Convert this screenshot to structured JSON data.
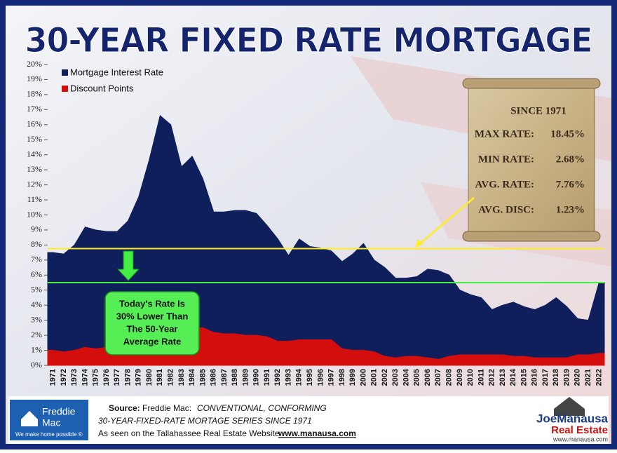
{
  "chart_data": {
    "type": "area",
    "title": "30-YEAR FIXED RATE MORTGAGE",
    "categories": [
      "1971",
      "1972",
      "1973",
      "1974",
      "1975",
      "1976",
      "1977",
      "1978",
      "1979",
      "1980",
      "1981",
      "1982",
      "1983",
      "1984",
      "1985",
      "1986",
      "1987",
      "1988",
      "1989",
      "1990",
      "1991",
      "1992",
      "1993",
      "1994",
      "1995",
      "1996",
      "1997",
      "1998",
      "1999",
      "2000",
      "2001",
      "2002",
      "2003",
      "2004",
      "2005",
      "2006",
      "2007",
      "2008",
      "2009",
      "2010",
      "2011",
      "2012",
      "2013",
      "2014",
      "2015",
      "2016",
      "2017",
      "2018",
      "2019",
      "2020",
      "2021",
      "2022"
    ],
    "series": [
      {
        "name": "Mortgage Interest Rate",
        "color": "#0f1f5c",
        "values": [
          7.5,
          7.4,
          8.0,
          9.2,
          9.0,
          8.9,
          8.9,
          9.6,
          11.2,
          13.7,
          16.6,
          16.0,
          13.2,
          13.9,
          12.4,
          10.2,
          10.2,
          10.3,
          10.3,
          10.1,
          9.3,
          8.4,
          7.3,
          8.4,
          7.9,
          7.8,
          7.6,
          6.9,
          7.4,
          8.1,
          7.0,
          6.5,
          5.8,
          5.8,
          5.9,
          6.4,
          6.3,
          6.0,
          5.0,
          4.7,
          4.5,
          3.7,
          4.0,
          4.2,
          3.9,
          3.7,
          4.0,
          4.5,
          3.9,
          3.1,
          3.0,
          5.5
        ]
      },
      {
        "name": "Discount Points",
        "color": "#d40d0d",
        "values": [
          1.0,
          0.9,
          1.0,
          1.2,
          1.1,
          1.2,
          1.1,
          1.3,
          1.6,
          1.8,
          2.1,
          2.2,
          2.1,
          2.5,
          2.5,
          2.2,
          2.1,
          2.1,
          2.0,
          2.0,
          1.9,
          1.6,
          1.6,
          1.7,
          1.7,
          1.7,
          1.7,
          1.1,
          1.0,
          1.0,
          0.9,
          0.6,
          0.5,
          0.6,
          0.6,
          0.5,
          0.4,
          0.6,
          0.7,
          0.7,
          0.7,
          0.7,
          0.7,
          0.6,
          0.6,
          0.5,
          0.5,
          0.5,
          0.5,
          0.7,
          0.7,
          0.8
        ]
      }
    ],
    "ylim": [
      0,
      20
    ],
    "yticks": [
      {
        "value": 0,
        "label": "0%"
      },
      {
        "value": 1,
        "label": "1%"
      },
      {
        "value": 2,
        "label": "2%"
      },
      {
        "value": 3,
        "label": "3%"
      },
      {
        "value": 4,
        "label": "4%"
      },
      {
        "value": 5,
        "label": "5%"
      },
      {
        "value": 6,
        "label": "6%"
      },
      {
        "value": 7,
        "label": "7%"
      },
      {
        "value": 8,
        "label": "8%"
      },
      {
        "value": 9,
        "label": "9%"
      },
      {
        "value": 10,
        "label": "10%"
      },
      {
        "value": 11,
        "label": "11%"
      },
      {
        "value": 12,
        "label": "12%"
      },
      {
        "value": 13,
        "label": "13%"
      },
      {
        "value": 14,
        "label": "14%"
      },
      {
        "value": 15,
        "label": "15%"
      },
      {
        "value": 16,
        "label": "16%"
      },
      {
        "value": 17,
        "label": "17%"
      },
      {
        "value": 18,
        "label": "18%"
      },
      {
        "value": 19,
        "label": "19%"
      },
      {
        "value": 20,
        "label": "20%"
      }
    ],
    "reference_lines": [
      {
        "value": 7.76,
        "color": "#ffee22"
      },
      {
        "value": 5.5,
        "color": "#44ee44"
      }
    ],
    "stats": {
      "heading": "SINCE 1971",
      "rows": [
        [
          "MAX RATE:",
          "18.45%"
        ],
        [
          "MIN RATE:",
          "2.68%"
        ],
        [
          "AVG. RATE:",
          "7.76%"
        ],
        [
          "AVG. DISC:",
          "1.23%"
        ]
      ]
    },
    "callout": [
      "Today's Rate Is",
      "30% Lower Than",
      "The 50-Year",
      "Average Rate"
    ]
  },
  "footer": {
    "source_label": "Source:",
    "source": "Freddie Mac:",
    "source_detail": "CONVENTIONAL, CONFORMING",
    "series_line": "30-YEAR-FIXED-RATE MORTAGE SERIES SINCE 1971",
    "seen_on": "As seen on the Tallahassee Real Estate Website",
    "site": "www.manausa.com",
    "left_logo": [
      "Freddie",
      "Mac",
      "We make home possible ®"
    ],
    "right_logo": [
      "JoeManausa",
      "Real Estate",
      "www.manausa.com"
    ]
  }
}
